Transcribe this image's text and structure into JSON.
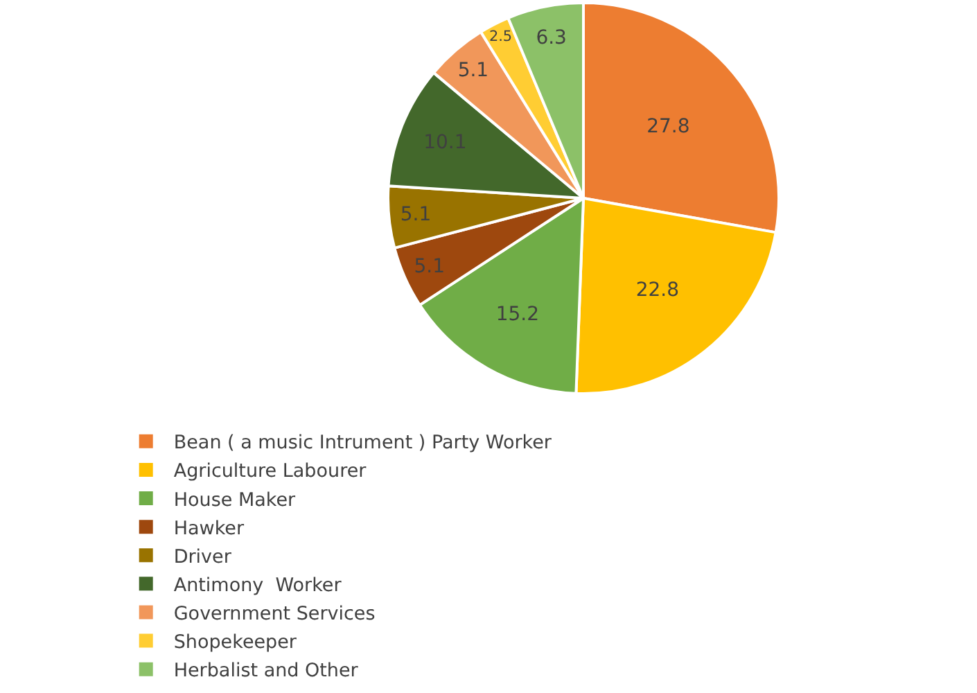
{
  "chart_data": {
    "type": "pie",
    "categories": [
      "Bean ( a music Intrument ) Party Worker",
      "Agriculture Labourer",
      "House Maker",
      "Hawker",
      "Driver",
      "Antimony  Worker",
      "Government Services",
      "Shopekeeper",
      "Herbalist and Other"
    ],
    "values": [
      27.8,
      22.8,
      15.2,
      5.1,
      5.1,
      10.1,
      5.1,
      2.5,
      6.3
    ],
    "colors": [
      "#ed7d31",
      "#ffc000",
      "#70ad47",
      "#9e480e",
      "#997300",
      "#43682b",
      "#f1975a",
      "#ffcd33",
      "#8cc168"
    ],
    "data_labels": true,
    "legend": "bottom"
  }
}
